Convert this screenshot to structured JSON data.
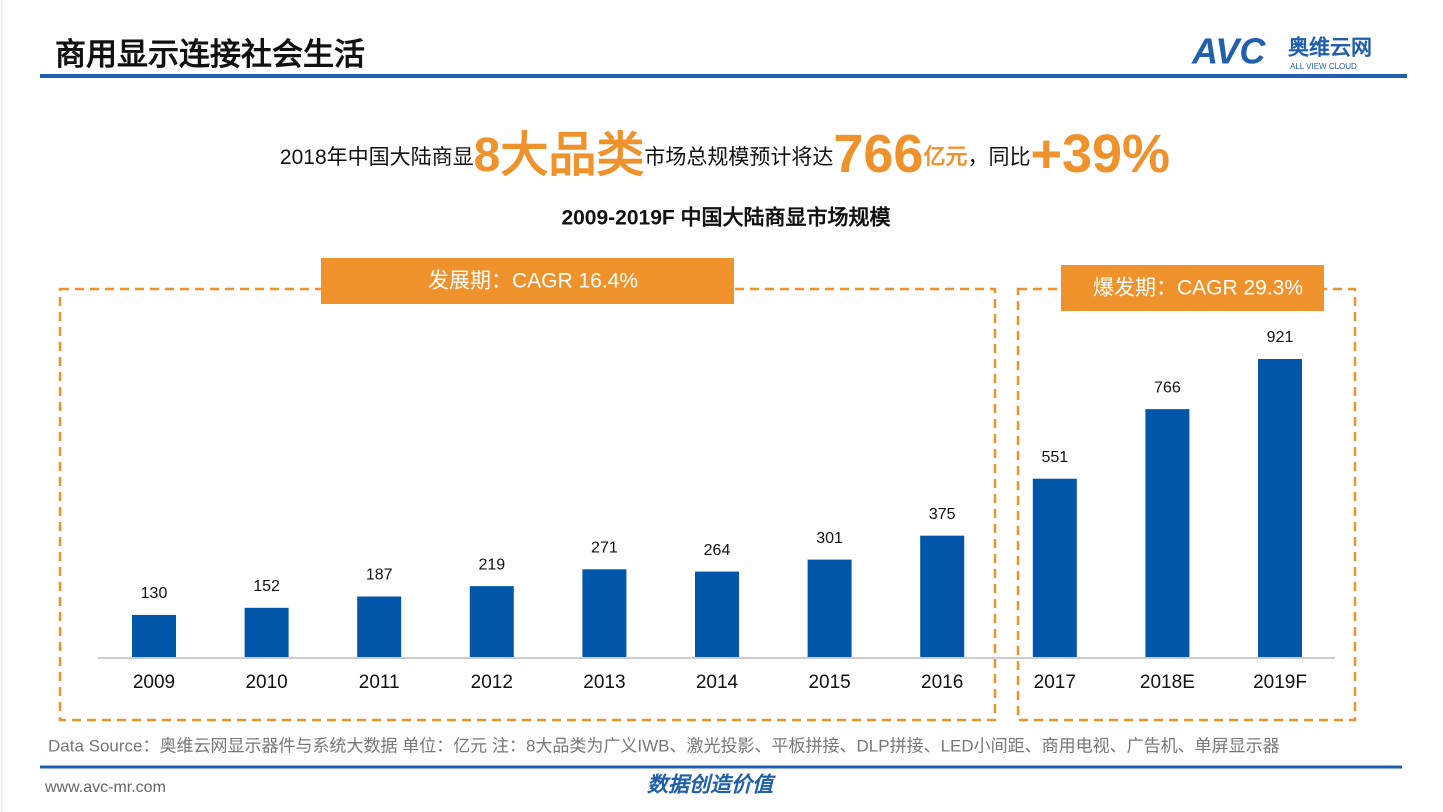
{
  "header": {
    "title": "商用显示连接社会生活",
    "logo": "AVC",
    "logo_name": "奥维云网",
    "logo_sub": "ALL VIEW CLOUD"
  },
  "headline": {
    "part1": "2018年中国大陆商显",
    "highlight1": "8大品类",
    "part2": "市场总规模预计将达",
    "highlight2": "766",
    "unit": "亿元",
    "part3": "，同比",
    "highlight3": "+39%"
  },
  "chart_data": {
    "type": "bar",
    "title": "2009-2019F 中国大陆商显市场规模",
    "categories": [
      "2009",
      "2010",
      "2011",
      "2012",
      "2013",
      "2014",
      "2015",
      "2016",
      "2017",
      "2018E",
      "2019F"
    ],
    "values": [
      130,
      152,
      187,
      219,
      271,
      264,
      301,
      375,
      551,
      766,
      921
    ],
    "color": "#0056a8",
    "annotations": [
      "发展期：CAGR 16.4%",
      "爆发期：CAGR 29.3%"
    ]
  },
  "footer": {
    "source": "Data Source：奥维云网显示器件与系统大数据   单位：亿元    注：8大品类为广义IWB、激光投影、平板拼接、DLP拼接、LED小间距、商用电视、广告机、单屏显示器",
    "url": "www.avc-mr.com",
    "slogan": "数据创造价值"
  }
}
